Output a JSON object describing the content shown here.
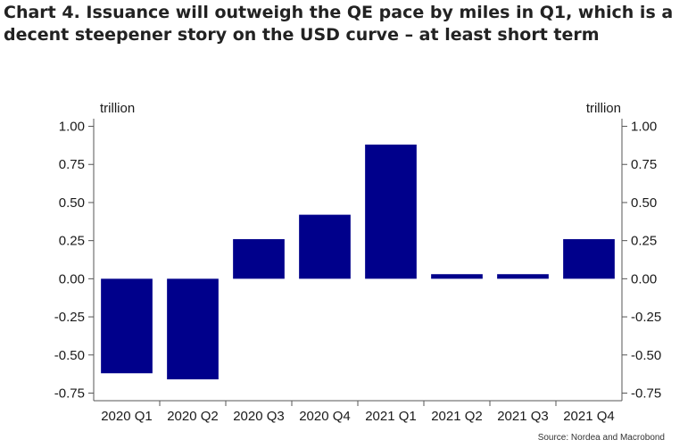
{
  "title": "Chart 4. Issuance will outweigh the QE pace by miles in Q1, which is a decent steepener story on the USD curve – at least short term",
  "source": "Source: Nordea and Macrobond",
  "colors": {
    "bar": "#00008b",
    "axis": "#555555",
    "text": "#1a1a1a"
  },
  "chart_data": {
    "type": "bar",
    "categories": [
      "2020 Q1",
      "2020 Q2",
      "2020 Q3",
      "2020 Q4",
      "2021 Q1",
      "2021 Q2",
      "2021 Q3",
      "2021 Q4"
    ],
    "values": [
      -0.62,
      -0.66,
      0.26,
      0.42,
      0.88,
      0.03,
      0.03,
      0.26
    ],
    "ylabel_left": "trillion",
    "ylabel_right": "trillion",
    "ylim": [
      -0.8,
      1.05
    ],
    "yticks": [
      1.0,
      0.75,
      0.5,
      0.25,
      0.0,
      -0.25,
      -0.5,
      -0.75
    ],
    "ytick_labels": [
      "1.00",
      "0.75",
      "0.50",
      "0.25",
      "0.00",
      "-0.25",
      "-0.50",
      "-0.75"
    ],
    "grid": false,
    "dual_axis": true
  }
}
